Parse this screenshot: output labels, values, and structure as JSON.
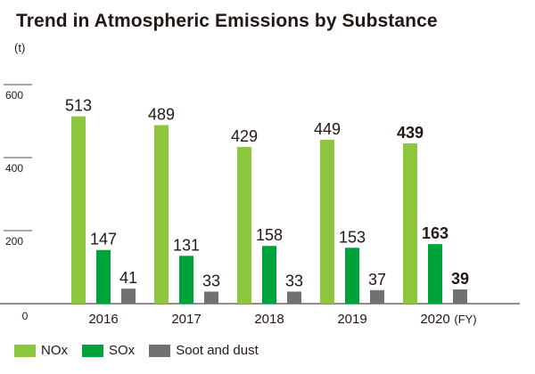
{
  "title": "Trend in Atmospheric Emissions by Substance",
  "unit_label": "(t)",
  "chart_data": {
    "type": "bar",
    "title": "Trend in Atmospheric Emissions by Substance",
    "ylabel": "(t)",
    "xlabel": "(FY)",
    "ylim": [
      0,
      620
    ],
    "yticks": [
      0,
      200,
      400,
      600
    ],
    "categories": [
      "2016",
      "2017",
      "2018",
      "2019",
      "2020"
    ],
    "highlight_category": "2020",
    "legend_position": "bottom-left",
    "series": [
      {
        "name": "NOx",
        "color": "#8dc63f",
        "values": [
          513,
          489,
          429,
          449,
          439
        ]
      },
      {
        "name": "SOx",
        "color": "#00a23a",
        "values": [
          147,
          131,
          158,
          153,
          163
        ]
      },
      {
        "name": "Soot and dust",
        "color": "#727171",
        "values": [
          41,
          33,
          33,
          37,
          39
        ]
      }
    ]
  }
}
